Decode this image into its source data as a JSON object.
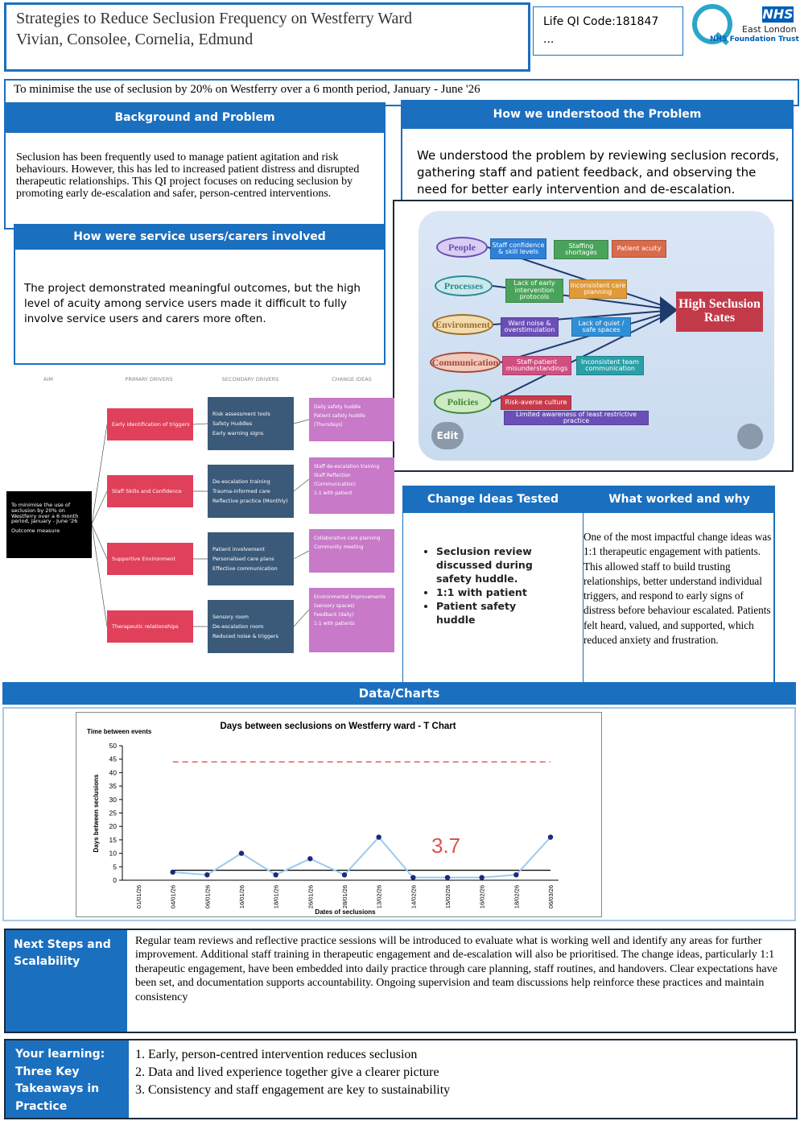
{
  "header": {
    "title": "Strategies to Reduce Seclusion Frequency on Westferry Ward",
    "authors": "Vivian, Consolee, Cornelia, Edmund",
    "qi_code": "Life QI Code:181847",
    "qi_more": "...",
    "logo": {
      "nhs": "NHS",
      "org": "East London",
      "trust": "NHS Foundation Trust"
    }
  },
  "aim": "To minimise the use of seclusion by 20% on Westferry over a 6 month period, January - June '26",
  "background": {
    "heading": "Background and Problem",
    "text": "Seclusion has been frequently used to manage patient agitation and risk behaviours. However, this has led to increased patient distress and disrupted therapeutic relationships. This QI project focuses on reducing seclusion by promoting early de-escalation and safer, person-centred interventions."
  },
  "involvement": {
    "heading": "How were service users/carers involved",
    "text": "The project demonstrated meaningful outcomes, but the high level of acuity among service users made it difficult to fully involve service users and carers more often."
  },
  "understanding": {
    "heading": "How we understood the Problem",
    "text": "We understood the problem by reviewing seclusion records, gathering staff and patient feedback, and observing the need for better early intervention and de-escalation."
  },
  "fishbone": {
    "effect": "High Seclusion Rates",
    "categories": [
      {
        "label": "People",
        "causes": [
          "Staff confidence & skill levels",
          "Staffing shortages",
          "Patient acuity"
        ]
      },
      {
        "label": "Processes",
        "causes": [
          "Lack of early intervention protocols",
          "Inconsistent care planning"
        ]
      },
      {
        "label": "Environment",
        "causes": [
          "Ward noise & overstimulation",
          "Lack of quiet / safe spaces"
        ]
      },
      {
        "label": "Communication",
        "causes": [
          "Staff-patient misunderstandings",
          "Inconsistent team communication"
        ]
      },
      {
        "label": "Policies",
        "causes": [
          "Risk-averse culture",
          "Limited awareness of least restrictive practice"
        ]
      }
    ],
    "edit": "Edit"
  },
  "driver_diagram": {
    "headers": [
      "AIM",
      "PRIMARY DRIVERS",
      "SECONDARY DRIVERS",
      "CHANGE IDEAS"
    ],
    "aim": "To minimise the use of seclusion by 20% on Westferry over a 6 month period, January - June '26",
    "aim_note": "Outcome measure",
    "drivers": [
      {
        "primary": "Early identification of triggers",
        "secondary": [
          "Risk assessment tools",
          "Safety Huddles",
          "Early warning signs"
        ],
        "ideas": [
          "Daily safety huddle",
          "Patient safety huddle (Thursdays)"
        ]
      },
      {
        "primary": "Staff Skills and Confidence",
        "secondary": [
          "De-escalation training",
          "Trauma-informed care",
          "Reflective practice (Monthly)"
        ],
        "ideas": [
          "Staff de-escalation training",
          "Staff Reflection (Communication)",
          "1:1 with patient"
        ]
      },
      {
        "primary": "Supportive Environment",
        "secondary": [
          "Patient involvement",
          "Personalised care plans",
          "Effective communication"
        ],
        "ideas": [
          "Collaborative care planning",
          "Community meeting"
        ]
      },
      {
        "primary": "Therapeutic relationships",
        "secondary": [
          "Sensory room",
          "De-escalation room",
          "Reduced noise & triggers"
        ],
        "ideas": [
          "Environmental improvements (sensory spaces)",
          "Feedback (daily)",
          "1:1 with patients"
        ]
      }
    ]
  },
  "change_ideas": {
    "heading": "Change Ideas Tested",
    "items": [
      "Seclusion review discussed during safety huddle.",
      "1:1 with patient",
      "Patient safety huddle"
    ]
  },
  "what_worked": {
    "heading": "What worked and why",
    "text": "One of the most impactful change ideas was 1:1 therapeutic engagement with patients. This allowed staff to build trusting relationships, better understand individual triggers, and respond to early signs of distress before behaviour escalated. Patients felt heard, valued, and supported, which reduced anxiety and frustration."
  },
  "data_heading": "Data/Charts",
  "chart_data": {
    "type": "line",
    "title": "Days between seclusions on Westferry ward - T Chart",
    "y_note": "Time between events",
    "y_label": "Days between seclusions",
    "x_label": "Dates of seclusions",
    "categories": [
      "01/01/26",
      "04/01/26",
      "06/01/26",
      "16/01/26",
      "18/01/26",
      "26/01/26",
      "28/01/26",
      "13/02/26",
      "14/02/26",
      "15/02/26",
      "16/02/26",
      "18/02/26",
      "06/03/26"
    ],
    "values": [
      null,
      3,
      2,
      10,
      2,
      8,
      2,
      16,
      1,
      1,
      1,
      2,
      16
    ],
    "color": "#9ccbee",
    "marker_color": "#1c2a78",
    "center_line": 3.7,
    "center_color": "#000000",
    "upper_limit": 44,
    "upper_color": "#e05050",
    "ylim": [
      0,
      50
    ],
    "yticks": [
      0,
      5,
      10,
      15,
      20,
      25,
      30,
      35,
      40,
      45,
      50
    ],
    "grid": false
  },
  "next_steps": {
    "heading": "Next Steps and Scalability",
    "text": "Regular team reviews and reflective practice sessions will be introduced to evaluate what is working well and identify any areas for further improvement. Additional staff training in therapeutic engagement and de-escalation will also be prioritised. The change ideas, particularly 1:1 therapeutic engagement, have been embedded into daily practice through care planning, staff routines, and handovers. Clear expectations have been set, and documentation supports accountability. Ongoing supervision and team discussions help reinforce these practices and maintain consistency"
  },
  "learning": {
    "heading": "Your learning: Three Key Takeaways in Practice",
    "items": [
      "1. Early, person-centred intervention reduces seclusion",
      "2. Data and lived experience together give a clearer picture",
      "3. Consistency and staff engagement are key to sustainability"
    ]
  }
}
